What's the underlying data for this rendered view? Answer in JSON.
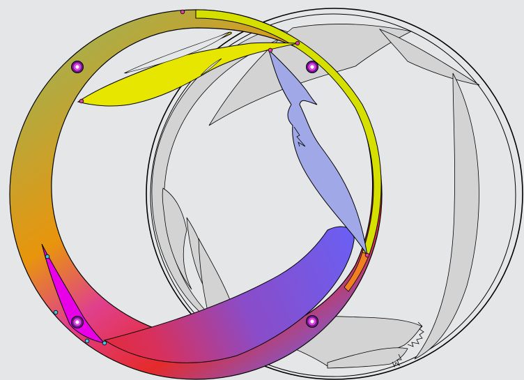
{
  "canvas": {
    "background": "#e5e6e8"
  },
  "colors": {
    "ring_gradient": [
      "#a3b050",
      "#e8950c",
      "#e0408c",
      "#e52a2a",
      "#7060e8"
    ],
    "ring_rim": "#d6e000",
    "ring_rim_tail": "#f08020",
    "yellow_shape": "#e6e600",
    "lavender_shape": "#a1a8e8",
    "magenta_shape": "#e800e8",
    "gray_shape": "#d3d3d3",
    "handle_outer": "#6a1a8a",
    "handle_mid": "#e040e0",
    "node_magenta": "#e040a0",
    "node_cyan": "#40c8e0"
  },
  "diagram": {
    "description_free": true,
    "handles": [
      {
        "id": "handle-top-left"
      },
      {
        "id": "handle-top-right"
      },
      {
        "id": "handle-bottom-left"
      },
      {
        "id": "handle-bottom-right"
      }
    ]
  }
}
